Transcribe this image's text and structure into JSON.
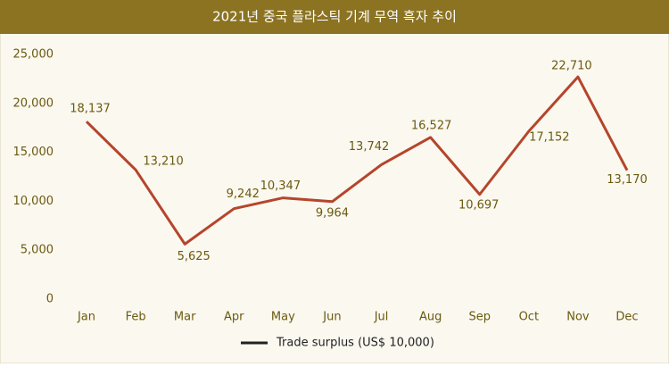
{
  "chart_data": {
    "type": "line",
    "title": "2021년 중국 플라스틱 기계 무역 흑자 추이",
    "categories": [
      "Jan",
      "Feb",
      "Mar",
      "Apr",
      "May",
      "Jun",
      "Jul",
      "Aug",
      "Sep",
      "Oct",
      "Nov",
      "Dec"
    ],
    "series": [
      {
        "name": "Trade surplus (US$ 10,000)",
        "color": "#b5452c",
        "values": [
          18137,
          13210,
          5625,
          9242,
          10347,
          9964,
          13742,
          16527,
          10697,
          17152,
          22710,
          13170
        ],
        "value_labels": [
          "18,137",
          "13,210",
          "5,625",
          "9,242",
          "10,347",
          "9,964",
          "13,742",
          "16,527",
          "10,697",
          "17,152",
          "22,710",
          "13,170"
        ]
      }
    ],
    "ylim": [
      0,
      25000
    ],
    "yticks": [
      0,
      {
        "value": 5000,
        "label": "5,000"
      },
      {
        "value": 10000,
        "label": "10,000"
      },
      {
        "value": 15000,
        "label": "15,000"
      },
      {
        "value": 20000,
        "label": "20,000"
      },
      {
        "value": 25000,
        "label": "25,000"
      }
    ],
    "grid": false
  }
}
